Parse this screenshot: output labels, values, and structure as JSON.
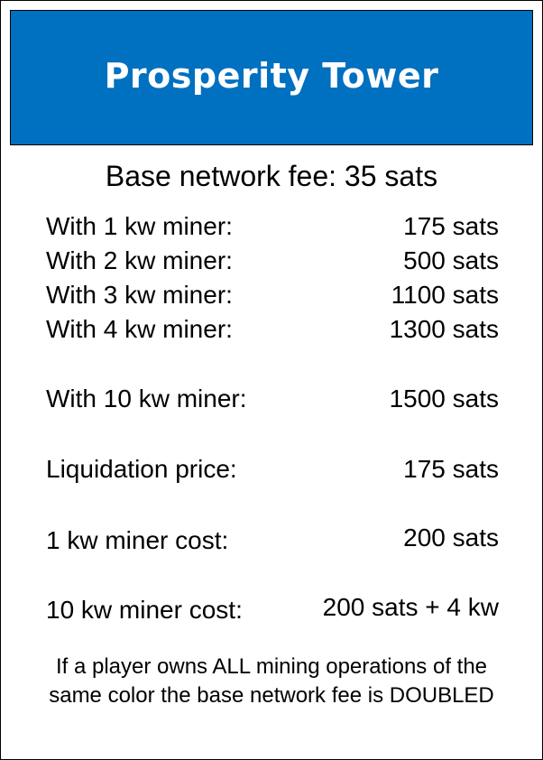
{
  "card": {
    "title": "Prosperity Tower",
    "title_bg": "#0070C0",
    "base_fee": "Base network fee: 35 sats",
    "rows": [
      {
        "label": "With 1 kw miner:",
        "value": "175 sats"
      },
      {
        "label": "With 2 kw miner:",
        "value": "500 sats"
      },
      {
        "label": "With 3 kw miner:",
        "value": "1100 sats"
      },
      {
        "label": "With 4 kw miner:",
        "value": "1300 sats"
      },
      {
        "label": "With 10 kw miner:",
        "value": "1500 sats"
      },
      {
        "label": "Liquidation price:",
        "value": "175 sats"
      },
      {
        "label": "1 kw miner cost:",
        "value": "200 sats"
      },
      {
        "label": "10 kw miner cost:",
        "value": "200 sats + 4 kw"
      }
    ],
    "footnote": "If a player owns ALL mining operations of the same color the base network fee is DOUBLED"
  }
}
